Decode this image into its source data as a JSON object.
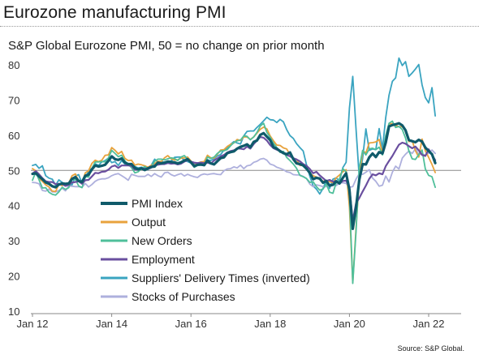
{
  "title": "Eurozone manufacturing PMI",
  "subtitle": "S&P Global Eurozone PMI, 50 = no change on prior month",
  "source": "Source: S&P Global.",
  "chart_data": {
    "type": "line",
    "x_start": "Jan 12",
    "x_end": "Aug 22",
    "x_ticks": [
      "Jan 12",
      "Jan 14",
      "Jan 16",
      "Jan 18",
      "Jan 20",
      "Jan 22"
    ],
    "y_ticks": [
      10,
      20,
      30,
      40,
      50,
      60,
      70,
      80
    ],
    "ylim": [
      10,
      80
    ],
    "reference_line": 50,
    "grid": false,
    "legend_position": "left, inside plot",
    "series": [
      {
        "name": "PMI Index",
        "color": "#0f5a6a",
        "width": 3.2,
        "values": [
          49,
          49.2,
          48.3,
          47.5,
          46.6,
          46.2,
          45.5,
          45.2,
          46,
          46.3,
          46.2,
          46.3,
          47.6,
          48.1,
          47,
          46.7,
          48.5,
          48.8,
          50.3,
          51.4,
          51.1,
          51.3,
          51.6,
          52.7,
          54,
          53.2,
          53,
          53.4,
          52.2,
          51.8,
          51.8,
          50.7,
          50.3,
          50.6,
          50.1,
          50.6,
          51,
          51.1,
          52.2,
          52,
          52.2,
          52.5,
          52.4,
          52.3,
          52,
          52.3,
          52.8,
          53.2,
          52.3,
          51.2,
          51.6,
          51.7,
          51.5,
          52.8,
          52,
          51.7,
          52.6,
          53.5,
          53.7,
          54.9,
          55.2,
          55.4,
          56.2,
          56.7,
          57,
          57.4,
          56.6,
          58.1,
          58.5,
          60.1,
          60.6,
          59.6,
          58.6,
          56.6,
          56.2,
          55.5,
          54.9,
          54.6,
          55.1,
          53.2,
          52,
          51.8,
          51.4,
          50.5,
          49.3,
          47.5,
          47.9,
          47.7,
          46.5,
          47,
          45.7,
          45.9,
          46.9,
          46.3,
          47.9,
          49.2,
          44.5,
          33.4,
          39.4,
          47.4,
          51.8,
          51.7,
          53.7,
          54.8,
          53.8,
          55.2,
          54.8,
          57.9,
          62.5,
          62.9,
          63.1,
          63.4,
          62.8,
          61.4,
          58.6,
          58.3,
          58,
          58.7,
          58.2,
          56.5,
          55.5,
          54.6,
          52.1
        ]
      },
      {
        "name": "Output",
        "color": "#e8a23c",
        "width": 1.8,
        "values": [
          50.5,
          49.9,
          47.7,
          46.9,
          45.9,
          45.3,
          44.1,
          44,
          46.1,
          45.7,
          46.2,
          46.4,
          48.5,
          49,
          46.9,
          46.5,
          49.3,
          49.9,
          52,
          52.9,
          52.5,
          52.9,
          54.3,
          54.4,
          56.5,
          55.7,
          54.7,
          55.4,
          53.4,
          52.8,
          52.9,
          51.5,
          51.8,
          51.6,
          51.3,
          50.9,
          51.5,
          51.9,
          52.6,
          52.5,
          53.6,
          54.2,
          53.3,
          53,
          53,
          53.5,
          53.6,
          53.8,
          52.7,
          51.4,
          52.1,
          52.4,
          52.5,
          54.3,
          53.6,
          53.5,
          54.6,
          55.8,
          55.9,
          56.8,
          57.4,
          57.8,
          58.8,
          58.5,
          59.5,
          59.5,
          58.8,
          59.5,
          60.6,
          61.7,
          62.3,
          61.8,
          59.8,
          58.4,
          57.2,
          57.1,
          56.4,
          56.1,
          54.5,
          53.3,
          53.2,
          51.4,
          51.5,
          50.4,
          49.1,
          48.5,
          48.1,
          47.4,
          46.9,
          47.1,
          46.8,
          46.5,
          47.9,
          48.7,
          49.6,
          50.2,
          39.6,
          18.1,
          33.5,
          47.9,
          55.6,
          55,
          57.8,
          57.9,
          58.1,
          58.8,
          54.8,
          59.1,
          63.2,
          63.3,
          62.8,
          62.4,
          62.4,
          61.5,
          58.2,
          58.4,
          55.6,
          53.8,
          58.9,
          55.6,
          53.7,
          51.7,
          49.4
        ]
      },
      {
        "name": "New Orders",
        "color": "#4fbf9a",
        "width": 1.8,
        "values": [
          47.2,
          49.6,
          47.3,
          45,
          45.1,
          43.8,
          43.2,
          43,
          43.9,
          45.2,
          44.6,
          45.1,
          47.5,
          47.4,
          45.6,
          45.1,
          48.2,
          48.1,
          50.6,
          52.4,
          52.4,
          52.5,
          52.4,
          53.5,
          55.7,
          54.8,
          53.9,
          54.3,
          52.7,
          51.7,
          50.8,
          49.3,
          49.6,
          50.4,
          51.1,
          50.5,
          50.9,
          52.6,
          53.2,
          53.2,
          53,
          53.3,
          53.6,
          53.4,
          52.8,
          53.8,
          54.2,
          53.2,
          52.1,
          50.9,
          51.4,
          51.5,
          51.4,
          53.8,
          53.4,
          53.8,
          54.8,
          55.5,
          55.6,
          55.9,
          57,
          57.9,
          58.4,
          58.6,
          59.8,
          59.7,
          58.7,
          59.5,
          60.8,
          62.6,
          63.4,
          60.8,
          59.4,
          57.7,
          56.5,
          55.1,
          55.4,
          53.7,
          52.8,
          51.8,
          50.6,
          48.6,
          48.2,
          47.7,
          46.6,
          46.8,
          45.4,
          44.4,
          44.7,
          46.2,
          43.8,
          43.5,
          46.5,
          47.6,
          50.5,
          49.6,
          43,
          17.9,
          32.4,
          50.8,
          55.7,
          54.4,
          56.1,
          56.3,
          55.9,
          56.6,
          54.4,
          59.9,
          63.4,
          64,
          62.2,
          62.5,
          61.6,
          59.2,
          55.6,
          53.3,
          53.1,
          54.5,
          55.8,
          50.4,
          48.6,
          48.2,
          45.2
        ]
      },
      {
        "name": "Employment",
        "color": "#6a4f9f",
        "width": 2.2,
        "values": [
          49.1,
          49.8,
          48.9,
          47.8,
          46.9,
          46.7,
          46.7,
          46.1,
          46.2,
          46.1,
          45.6,
          45.9,
          46.6,
          46.7,
          46.9,
          46.2,
          47.2,
          47.3,
          48.3,
          49.3,
          49.2,
          49.6,
          49.7,
          50.2,
          51.1,
          51.4,
          50.7,
          51.4,
          51.4,
          51.4,
          51.3,
          50.2,
          50.2,
          50.5,
          50.5,
          50.4,
          50.8,
          51.5,
          51.6,
          51.8,
          51.8,
          52.1,
          51.9,
          52,
          51.7,
          51.9,
          52.5,
          52.9,
          52.5,
          52.2,
          52.1,
          52.2,
          52.1,
          52.2,
          51.9,
          52.8,
          53.4,
          54,
          54.4,
          55.1,
          55.5,
          55.7,
          56.2,
          56.2,
          56,
          56.8,
          56.2,
          57.5,
          58.5,
          59.5,
          59.3,
          58.5,
          57.2,
          56.3,
          55.9,
          55.4,
          55,
          54.4,
          54,
          53.5,
          53.1,
          52.6,
          51.8,
          51.3,
          50.4,
          49.2,
          49.6,
          48.6,
          47.8,
          47,
          47.3,
          46.8,
          47,
          46.3,
          47,
          47.1,
          45.3,
          35.6,
          40.6,
          42.2,
          44,
          45.7,
          47.6,
          48.9,
          48.6,
          49.2,
          48.9,
          51.2,
          52.7,
          54.1,
          55.7,
          57.3,
          57.9,
          57.6,
          56.9,
          56.3,
          56.8,
          55.7,
          54.4,
          54.1,
          56,
          54.4,
          52.9
        ]
      },
      {
        "name": "Suppliers' Delivery Times (inverted)",
        "color": "#3aa4c0",
        "width": 1.8,
        "values": [
          51.4,
          51.7,
          50.6,
          51.3,
          48.5,
          47.8,
          47.5,
          45.8,
          47.3,
          46.6,
          45.9,
          46,
          45.9,
          48.4,
          48.8,
          46.3,
          48,
          49.8,
          50.6,
          51.9,
          51.4,
          52.4,
          52.8,
          53.5,
          52.2,
          52.5,
          51.4,
          52.8,
          51.8,
          51.5,
          51.2,
          51.1,
          50.7,
          50.9,
          50.7,
          50.2,
          51.5,
          53.2,
          52.4,
          52.6,
          52.2,
          52.1,
          52.7,
          53.7,
          53.8,
          53.8,
          52.8,
          52.5,
          52.1,
          51.9,
          52,
          51.8,
          51.6,
          53,
          52.8,
          53.3,
          54.1,
          54.5,
          55.8,
          56.2,
          57.4,
          58.2,
          57.8,
          57.5,
          59.8,
          61.1,
          61.2,
          61.2,
          62.2,
          63.1,
          64.1,
          65.1,
          64.4,
          64.3,
          63.6,
          64.5,
          63.8,
          61.6,
          59.9,
          59.1,
          57.6,
          56.5,
          55.5,
          51.6,
          48.4,
          45.6,
          44.7,
          43.3,
          44.9,
          47.1,
          44.9,
          47.5,
          47.9,
          47,
          50.8,
          52.3,
          67.7,
          76.7,
          61.9,
          47.6,
          53.5,
          61.8,
          55.7,
          56.1,
          55.9,
          61.9,
          56.1,
          65,
          71.4,
          75.3,
          76.3,
          81.9,
          79.8,
          80.9,
          76.7,
          77.7,
          78.8,
          80.1,
          74.3,
          70.7,
          69.2,
          73.5,
          65.5
        ]
      },
      {
        "name": "Stocks of Purchases",
        "color": "#aeb0dd",
        "width": 1.8,
        "values": [
          46.6,
          46.5,
          46.2,
          44.3,
          44.1,
          44.7,
          43.9,
          43.9,
          44.3,
          44.9,
          44.2,
          45.6,
          45.5,
          45.4,
          45.4,
          45.2,
          46.3,
          45.3,
          46,
          46.9,
          47.4,
          47.6,
          47.6,
          47.9,
          48.5,
          48.9,
          49.1,
          48.5,
          47.9,
          47.2,
          48.9,
          48.6,
          48.3,
          48.3,
          48.3,
          48.9,
          48.3,
          49.1,
          48.5,
          48.1,
          49.3,
          49.5,
          48.8,
          48.4,
          48.8,
          49.1,
          48.4,
          48.9,
          48.5,
          48.2,
          48,
          48.7,
          49,
          48.8,
          49,
          49.1,
          48.9,
          48.8,
          49.9,
          50.4,
          50.5,
          51,
          50.7,
          51.5,
          50.5,
          51.3,
          51.5,
          52.3,
          52.6,
          53.2,
          53.4,
          52.9,
          51.8,
          51.5,
          50.9,
          50.6,
          50.2,
          49.6,
          49.4,
          48.8,
          48.7,
          48.7,
          48.3,
          47.7,
          46.1,
          45.4,
          45.9,
          45.7,
          45.4,
          45.4,
          45.6,
          45.9,
          45.7,
          46.4,
          46.5,
          46.3,
          45.2,
          45.4,
          47.5,
          49.1,
          48.9,
          49.5,
          50.2,
          47.8,
          46.9,
          45.5,
          45.8,
          48.4,
          46.7,
          49.5,
          51.2,
          50.4,
          53.5,
          54.6,
          55.5,
          54.8,
          56.2,
          54.5,
          54.7,
          54.3,
          54.9,
          55.8,
          54.8
        ]
      }
    ]
  }
}
